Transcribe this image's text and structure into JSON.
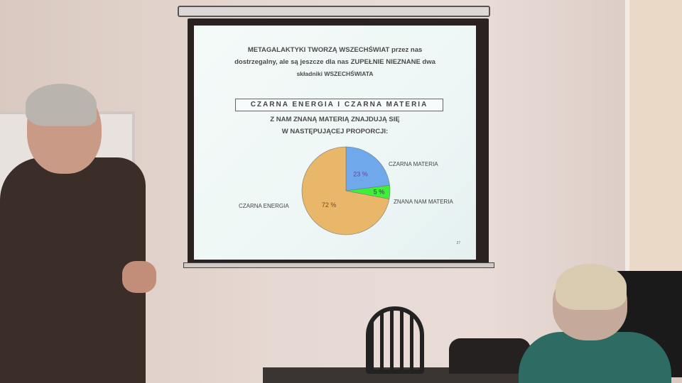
{
  "slide": {
    "intro_lines": [
      "METAGALAKTYKI TWORZĄ WSZECHŚWIAT przez nas",
      "dostrzegalny, ale są jeszcze dla nas ZUPEŁNIE NIEZNANE dwa",
      "składniki WSZECHŚWIATA"
    ],
    "boxed_title": "CZARNA ENERGIA I CZARNA MATERIA",
    "subtitle_lines": [
      "Z NAM ZNANĄ MATERIĄ ZNAJDUJĄ SIĘ",
      "W NASTĘPUJĄCEJ PROPORCJI:"
    ],
    "page_number": "27"
  },
  "chart_data": {
    "type": "pie",
    "categories": [
      "CZARNA MATERIA",
      "ZNANA NAM MATERIA",
      "CZARNA ENERGIA"
    ],
    "values": [
      23,
      5,
      72
    ],
    "data_labels": [
      "23 %",
      "5 %",
      "72 %"
    ],
    "colors": [
      "#6fa9ec",
      "#3ef03a",
      "#e9b76a"
    ],
    "label_colors": [
      "#6a3fa8",
      "#333333",
      "#7a4a20"
    ]
  }
}
